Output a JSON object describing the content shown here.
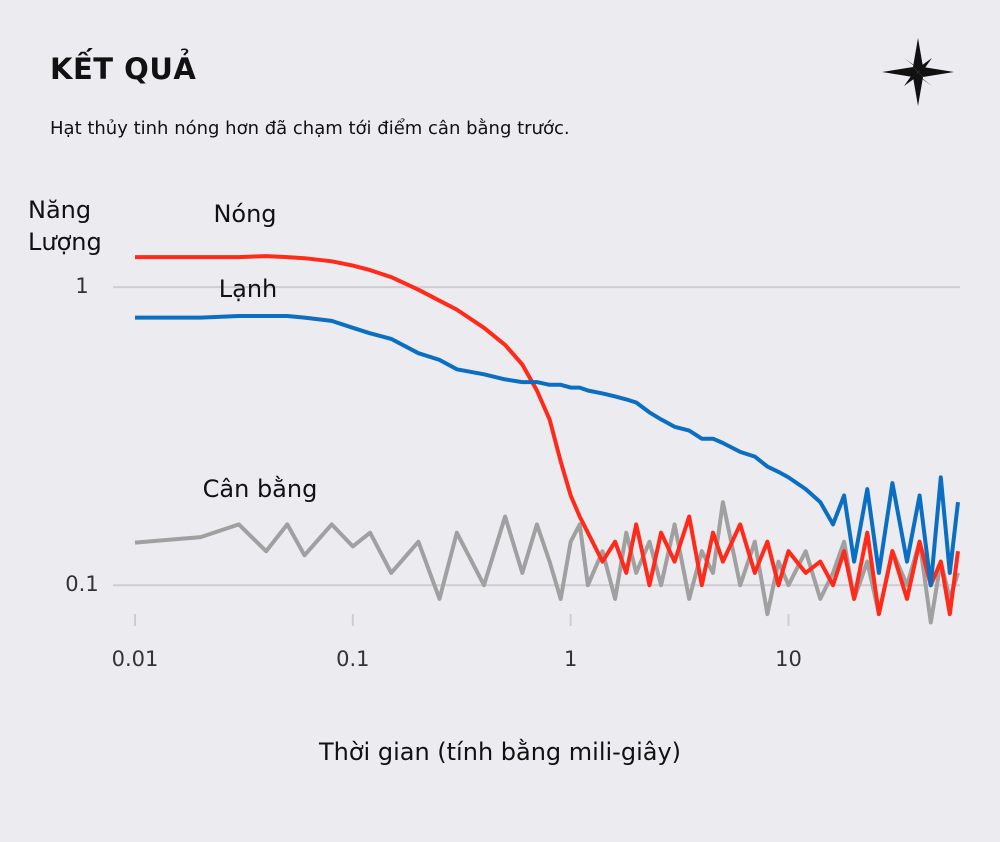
{
  "chart_data": {
    "type": "line",
    "title": "KẾT QUẢ",
    "subtitle": "Hạt thủy tinh nóng hơn đã chạm tới điểm cân bằng trước.",
    "ylabel": "Năng Lượng",
    "xlabel": "Thời gian (tính bằng mili-giây)",
    "xscale": "log",
    "yscale": "log",
    "grid": true,
    "xlim": [
      0.01,
      60
    ],
    "ylim": [
      0.065,
      1.4
    ],
    "xticks": [
      0.01,
      0.1,
      1,
      10
    ],
    "yticks": [
      0.1,
      1
    ],
    "x": [
      0.01,
      0.02,
      0.03,
      0.04,
      0.05,
      0.06,
      0.08,
      0.1,
      0.12,
      0.15,
      0.2,
      0.25,
      0.3,
      0.4,
      0.5,
      0.6,
      0.7,
      0.8,
      0.9,
      1,
      1.1,
      1.2,
      1.4,
      1.6,
      1.8,
      2,
      2.3,
      2.6,
      3,
      3.5,
      4,
      4.5,
      5,
      6,
      7,
      8,
      9,
      10,
      12,
      14,
      16,
      18,
      20,
      23,
      26,
      30,
      35,
      40,
      45,
      50,
      55,
      60
    ],
    "series": [
      {
        "name": "Nóng",
        "color": "#ff2a1a",
        "values": [
          1.26,
          1.26,
          1.26,
          1.27,
          1.26,
          1.25,
          1.22,
          1.18,
          1.14,
          1.08,
          0.98,
          0.9,
          0.84,
          0.73,
          0.64,
          0.55,
          0.45,
          0.36,
          0.26,
          0.2,
          0.17,
          0.15,
          0.12,
          0.14,
          0.11,
          0.16,
          0.1,
          0.15,
          0.12,
          0.17,
          0.1,
          0.15,
          0.12,
          0.16,
          0.11,
          0.14,
          0.1,
          0.13,
          0.11,
          0.12,
          0.1,
          0.13,
          0.09,
          0.15,
          0.08,
          0.13,
          0.09,
          0.14,
          0.1,
          0.12,
          0.08,
          0.13
        ]
      },
      {
        "name": "Lạnh",
        "color": "#0a6fc2",
        "values": [
          0.79,
          0.79,
          0.8,
          0.8,
          0.8,
          0.79,
          0.77,
          0.73,
          0.7,
          0.67,
          0.6,
          0.57,
          0.53,
          0.51,
          0.49,
          0.48,
          0.48,
          0.47,
          0.47,
          0.46,
          0.46,
          0.45,
          0.44,
          0.43,
          0.42,
          0.41,
          0.38,
          0.36,
          0.34,
          0.33,
          0.31,
          0.31,
          0.3,
          0.28,
          0.27,
          0.25,
          0.24,
          0.23,
          0.21,
          0.19,
          0.16,
          0.2,
          0.12,
          0.21,
          0.11,
          0.22,
          0.12,
          0.2,
          0.1,
          0.23,
          0.11,
          0.19
        ]
      },
      {
        "name": "Cân bằng",
        "color": "#a0a0a0",
        "values": [
          0.139,
          0.145,
          0.16,
          0.13,
          0.16,
          0.126,
          0.16,
          0.135,
          0.15,
          0.11,
          0.14,
          0.09,
          0.15,
          0.1,
          0.17,
          0.11,
          0.16,
          0.12,
          0.09,
          0.14,
          0.16,
          0.1,
          0.13,
          0.09,
          0.15,
          0.11,
          0.14,
          0.1,
          0.16,
          0.09,
          0.13,
          0.11,
          0.19,
          0.1,
          0.14,
          0.08,
          0.12,
          0.1,
          0.13,
          0.09,
          0.11,
          0.14,
          0.09,
          0.12,
          0.08,
          0.13,
          0.1,
          0.14,
          0.075,
          0.12,
          0.09,
          0.11
        ]
      }
    ]
  }
}
